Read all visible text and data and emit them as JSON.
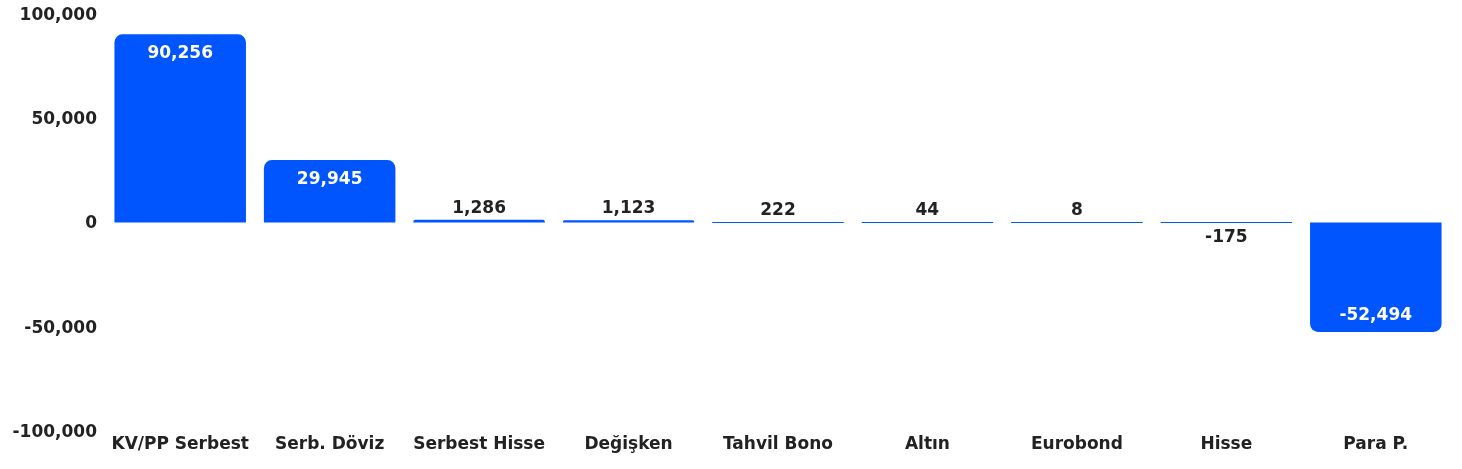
{
  "chart_data": {
    "type": "bar",
    "categories": [
      "KV/PP Serbest",
      "Serb. Döviz",
      "Serbest Hisse",
      "Değişken",
      "Tahvil Bono",
      "Altın",
      "Eurobond",
      "Hisse",
      "Para P."
    ],
    "values": [
      90256,
      29945,
      1286,
      1123,
      222,
      44,
      8,
      -175,
      -52494
    ],
    "color": "#0055ff",
    "value_labels": [
      "90,256",
      "29,945",
      "1,286",
      "1,123",
      "222",
      "44",
      "8",
      "-175",
      "-52,494"
    ],
    "ylim": [
      -100000,
      100000
    ],
    "yticks": [
      {
        "value": -100000,
        "label": "-100,000"
      },
      {
        "value": -50000,
        "label": "-50,000"
      },
      0,
      {
        "value": 50000,
        "label": "50,000"
      },
      {
        "value": 100000,
        "label": "100,000"
      }
    ],
    "grid": false,
    "legend": false
  }
}
